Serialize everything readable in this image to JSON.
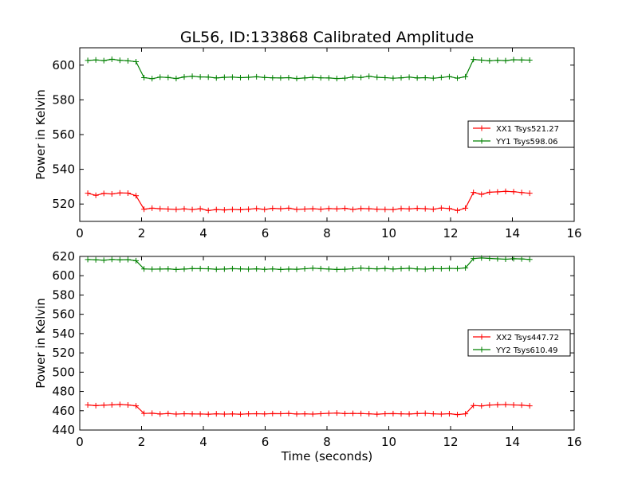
{
  "title": "GL56, ID:133868 Calibrated Amplitude",
  "chart_data": [
    {
      "type": "line",
      "title": "GL56, ID:133868 Calibrated Amplitude",
      "xlabel": "",
      "ylabel": "Power in Kelvin",
      "xlim": [
        0,
        16
      ],
      "ylim": [
        510,
        610
      ],
      "xticks": [
        0,
        2,
        4,
        6,
        8,
        10,
        12,
        14,
        16
      ],
      "yticks": [
        520,
        540,
        560,
        580,
        600
      ],
      "grid": false,
      "legend_position": "center-right",
      "x": [
        0.26,
        0.52,
        0.78,
        1.04,
        1.3,
        1.56,
        1.82,
        2.08,
        2.34,
        2.6,
        2.86,
        3.12,
        3.38,
        3.64,
        3.9,
        4.16,
        4.42,
        4.68,
        4.94,
        5.2,
        5.46,
        5.72,
        5.98,
        6.24,
        6.5,
        6.76,
        7.02,
        7.28,
        7.54,
        7.8,
        8.06,
        8.32,
        8.58,
        8.84,
        9.1,
        9.36,
        9.62,
        9.88,
        10.14,
        10.4,
        10.66,
        10.92,
        11.18,
        11.44,
        11.7,
        11.96,
        12.22,
        12.48,
        12.74,
        13.0,
        13.26,
        13.52,
        13.78,
        14.04,
        14.3,
        14.56
      ],
      "series": [
        {
          "name": "XX1 Tsys521.27",
          "color": "#ff0000",
          "values": [
            526.2,
            525.0,
            526.1,
            525.8,
            526.4,
            526.3,
            524.8,
            517.0,
            517.6,
            517.3,
            517.1,
            516.9,
            517.2,
            516.8,
            517.3,
            516.3,
            516.8,
            516.6,
            516.9,
            516.7,
            517.0,
            517.4,
            516.9,
            517.5,
            517.3,
            517.6,
            516.9,
            517.1,
            517.3,
            517.0,
            517.4,
            517.2,
            517.5,
            516.9,
            517.4,
            517.3,
            517.0,
            516.9,
            516.8,
            517.4,
            517.2,
            517.5,
            517.3,
            517.0,
            517.7,
            517.4,
            516.3,
            517.6,
            526.7,
            525.6,
            526.8,
            527.0,
            527.3,
            527.1,
            526.6,
            526.2
          ]
        },
        {
          "name": "YY1 Tsys598.06",
          "color": "#008000",
          "values": [
            602.7,
            603.0,
            602.6,
            603.4,
            602.8,
            602.5,
            602.0,
            592.8,
            592.2,
            593.1,
            592.9,
            592.3,
            593.2,
            593.6,
            593.2,
            593.1,
            592.6,
            593.0,
            593.1,
            592.8,
            593.0,
            593.3,
            592.9,
            592.7,
            592.6,
            592.8,
            592.3,
            592.6,
            593.0,
            592.7,
            592.6,
            592.3,
            592.5,
            593.2,
            592.9,
            593.6,
            593.0,
            592.8,
            592.5,
            592.7,
            593.1,
            592.6,
            592.8,
            592.5,
            592.9,
            593.4,
            592.5,
            593.3,
            603.3,
            602.9,
            602.5,
            602.8,
            602.6,
            603.1,
            603.0,
            602.9
          ]
        }
      ]
    },
    {
      "type": "line",
      "title": "",
      "xlabel": "Time (seconds)",
      "ylabel": "Power in Kelvin",
      "xlim": [
        0,
        16
      ],
      "ylim": [
        440,
        620
      ],
      "xticks": [
        0,
        2,
        4,
        6,
        8,
        10,
        12,
        14,
        16
      ],
      "yticks": [
        440,
        460,
        480,
        500,
        520,
        540,
        560,
        580,
        600,
        620
      ],
      "grid": false,
      "legend_position": "center-right",
      "x": [
        0.26,
        0.52,
        0.78,
        1.04,
        1.3,
        1.56,
        1.82,
        2.08,
        2.34,
        2.6,
        2.86,
        3.12,
        3.38,
        3.64,
        3.9,
        4.16,
        4.42,
        4.68,
        4.94,
        5.2,
        5.46,
        5.72,
        5.98,
        6.24,
        6.5,
        6.76,
        7.02,
        7.28,
        7.54,
        7.8,
        8.06,
        8.32,
        8.58,
        8.84,
        9.1,
        9.36,
        9.62,
        9.88,
        10.14,
        10.4,
        10.66,
        10.92,
        11.18,
        11.44,
        11.7,
        11.96,
        12.22,
        12.48,
        12.74,
        13.0,
        13.26,
        13.52,
        13.78,
        14.04,
        14.3,
        14.56
      ],
      "series": [
        {
          "name": "XX2 Tsys447.72",
          "color": "#ff0000",
          "values": [
            466.0,
            465.3,
            465.8,
            466.1,
            466.5,
            466.0,
            465.1,
            457.2,
            457.4,
            456.6,
            457.1,
            456.5,
            456.9,
            456.7,
            456.6,
            456.4,
            456.8,
            456.5,
            456.7,
            456.4,
            456.8,
            456.9,
            456.7,
            457.0,
            456.9,
            457.2,
            456.6,
            456.8,
            456.5,
            456.9,
            457.3,
            457.6,
            457.0,
            457.2,
            457.1,
            456.8,
            456.4,
            456.9,
            457.0,
            456.8,
            456.6,
            457.0,
            457.3,
            456.8,
            456.5,
            456.9,
            456.0,
            456.8,
            465.4,
            465.0,
            465.9,
            466.2,
            466.4,
            466.0,
            465.8,
            465.1
          ]
        },
        {
          "name": "YY2 Tsys610.49",
          "color": "#008000",
          "values": [
            616.8,
            616.5,
            616.1,
            616.9,
            616.5,
            616.7,
            615.6,
            607.0,
            606.8,
            606.9,
            607.1,
            606.5,
            606.9,
            607.4,
            607.3,
            607.2,
            606.7,
            606.9,
            607.3,
            607.0,
            606.8,
            607.1,
            606.6,
            607.0,
            606.5,
            606.9,
            606.7,
            607.2,
            607.8,
            607.3,
            606.9,
            606.5,
            606.7,
            607.2,
            607.9,
            607.4,
            607.1,
            607.5,
            606.9,
            607.3,
            607.7,
            607.0,
            606.8,
            607.4,
            607.2,
            607.6,
            607.4,
            608.1,
            617.8,
            618.4,
            617.9,
            617.5,
            617.1,
            617.6,
            617.4,
            616.9
          ]
        }
      ]
    }
  ]
}
